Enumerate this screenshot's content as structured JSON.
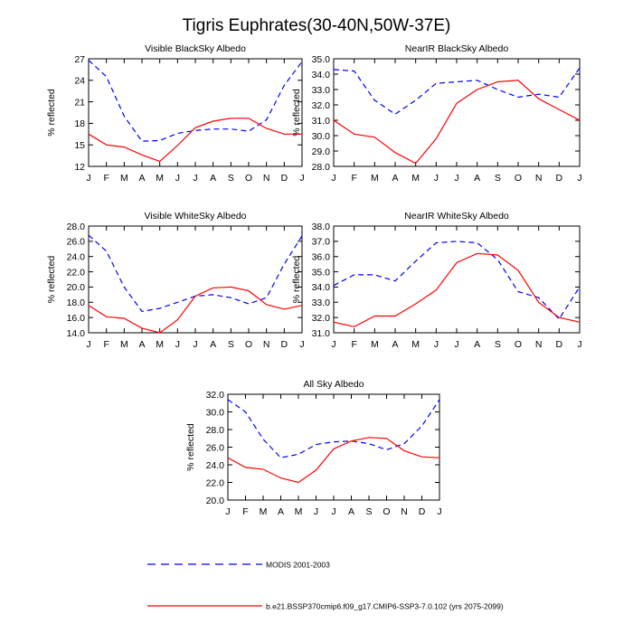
{
  "figure_title": "Tigris Euphrates(30-40N,50W-37E)",
  "colors": {
    "modis": "#0000ff",
    "model": "#ff0000",
    "axis": "#000000"
  },
  "legend": {
    "modis_label": "MODIS 2001-2003",
    "model_label": "b.e21.BSSP370cmip6.f09_g17.CMIP6-SSP3-7.0.102 (yrs 2075-2099)"
  },
  "chart_data": [
    {
      "type": "line",
      "title": "Visible BlackSky Albedo",
      "ylabel": "% reflected",
      "categories": [
        "J",
        "F",
        "M",
        "A",
        "M",
        "J",
        "J",
        "A",
        "S",
        "O",
        "N",
        "D",
        "J"
      ],
      "ylim": [
        12,
        27
      ],
      "yticks": [
        "12",
        "15",
        "18",
        "21",
        "24",
        "27"
      ],
      "series": [
        {
          "name": "MODIS 2001-2003",
          "style": "dashed",
          "values": [
            26.8,
            24.5,
            19.0,
            15.5,
            15.6,
            16.6,
            17.0,
            17.2,
            17.2,
            16.9,
            18.5,
            23.3,
            26.6
          ]
        },
        {
          "name": "b.e21.BSSP370cmip6.f09_g17.CMIP6-SSP3-7.0.102 (yrs 2075-2099)",
          "style": "solid",
          "values": [
            16.5,
            15.0,
            14.7,
            13.6,
            12.7,
            14.9,
            17.4,
            18.3,
            18.7,
            18.7,
            17.3,
            16.5,
            16.5
          ]
        }
      ]
    },
    {
      "type": "line",
      "title": "NearIR BlackSky Albedo",
      "ylabel": "% reflected",
      "categories": [
        "J",
        "F",
        "M",
        "A",
        "M",
        "J",
        "J",
        "A",
        "S",
        "O",
        "N",
        "D",
        "J"
      ],
      "ylim": [
        28.0,
        35.0
      ],
      "yticks": [
        "28.0",
        "29.0",
        "30.0",
        "31.0",
        "32.0",
        "33.0",
        "34.0",
        "35.0"
      ],
      "series": [
        {
          "name": "MODIS 2001-2003",
          "style": "dashed",
          "values": [
            34.3,
            34.2,
            32.3,
            31.4,
            32.3,
            33.4,
            33.5,
            33.6,
            33.0,
            32.5,
            32.7,
            32.5,
            34.4
          ]
        },
        {
          "name": "b.e21.BSSP370cmip6.f09_g17.CMIP6-SSP3-7.0.102 (yrs 2075-2099)",
          "style": "solid",
          "values": [
            31.0,
            30.1,
            29.9,
            28.9,
            28.2,
            29.8,
            32.1,
            33.0,
            33.5,
            33.6,
            32.4,
            31.7,
            31.0
          ]
        }
      ]
    },
    {
      "type": "line",
      "title": "Visible WhiteSky Albedo",
      "ylabel": "% reflected",
      "categories": [
        "J",
        "F",
        "M",
        "A",
        "M",
        "J",
        "J",
        "A",
        "S",
        "O",
        "N",
        "D",
        "J"
      ],
      "ylim": [
        14.0,
        28.0
      ],
      "yticks": [
        "14.0",
        "16.0",
        "18.0",
        "20.0",
        "22.0",
        "24.0",
        "26.0",
        "28.0"
      ],
      "series": [
        {
          "name": "MODIS 2001-2003",
          "style": "dashed",
          "values": [
            26.8,
            24.7,
            20.0,
            16.8,
            17.2,
            18.0,
            18.8,
            19.0,
            18.6,
            17.8,
            18.6,
            23.0,
            26.7
          ]
        },
        {
          "name": "b.e21.BSSP370cmip6.f09_g17.CMIP6-SSP3-7.0.102 (yrs 2075-2099)",
          "style": "solid",
          "values": [
            17.6,
            16.1,
            15.9,
            14.6,
            14.0,
            15.7,
            18.8,
            19.9,
            20.0,
            19.5,
            17.7,
            17.1,
            17.6
          ]
        }
      ]
    },
    {
      "type": "line",
      "title": "NearIR WhiteSky Albedo",
      "ylabel": "% reflected",
      "categories": [
        "J",
        "F",
        "M",
        "A",
        "M",
        "J",
        "J",
        "A",
        "S",
        "O",
        "N",
        "D",
        "J"
      ],
      "ylim": [
        31.0,
        38.0
      ],
      "yticks": [
        "31.0",
        "32.0",
        "33.0",
        "34.0",
        "35.0",
        "36.0",
        "37.0",
        "38.0"
      ],
      "series": [
        {
          "name": "MODIS 2001-2003",
          "style": "dashed",
          "values": [
            34.1,
            34.8,
            34.8,
            34.4,
            35.7,
            36.9,
            37.0,
            36.9,
            35.8,
            33.7,
            33.3,
            31.9,
            34.0
          ]
        },
        {
          "name": "b.e21.BSSP370cmip6.f09_g17.CMIP6-SSP3-7.0.102 (yrs 2075-2099)",
          "style": "solid",
          "values": [
            31.7,
            31.4,
            32.1,
            32.1,
            32.9,
            33.8,
            35.6,
            36.2,
            36.1,
            35.1,
            33.0,
            32.0,
            31.7
          ]
        }
      ]
    },
    {
      "type": "line",
      "title": "All Sky Albedo",
      "ylabel": "% reflected",
      "categories": [
        "J",
        "F",
        "M",
        "A",
        "M",
        "J",
        "J",
        "A",
        "S",
        "O",
        "N",
        "D",
        "J"
      ],
      "ylim": [
        20.0,
        32.0
      ],
      "yticks": [
        "20.0",
        "22.0",
        "24.0",
        "26.0",
        "28.0",
        "30.0",
        "32.0"
      ],
      "series": [
        {
          "name": "MODIS 2001-2003",
          "style": "dashed",
          "values": [
            31.4,
            30.0,
            26.9,
            24.8,
            25.2,
            26.3,
            26.6,
            26.7,
            26.4,
            25.7,
            26.4,
            28.4,
            31.4
          ]
        },
        {
          "name": "b.e21.BSSP370cmip6.f09_g17.CMIP6-SSP3-7.0.102 (yrs 2075-2099)",
          "style": "solid",
          "values": [
            24.8,
            23.7,
            23.5,
            22.5,
            22.0,
            23.4,
            25.8,
            26.7,
            27.1,
            27.0,
            25.6,
            24.9,
            24.8
          ]
        }
      ]
    }
  ]
}
